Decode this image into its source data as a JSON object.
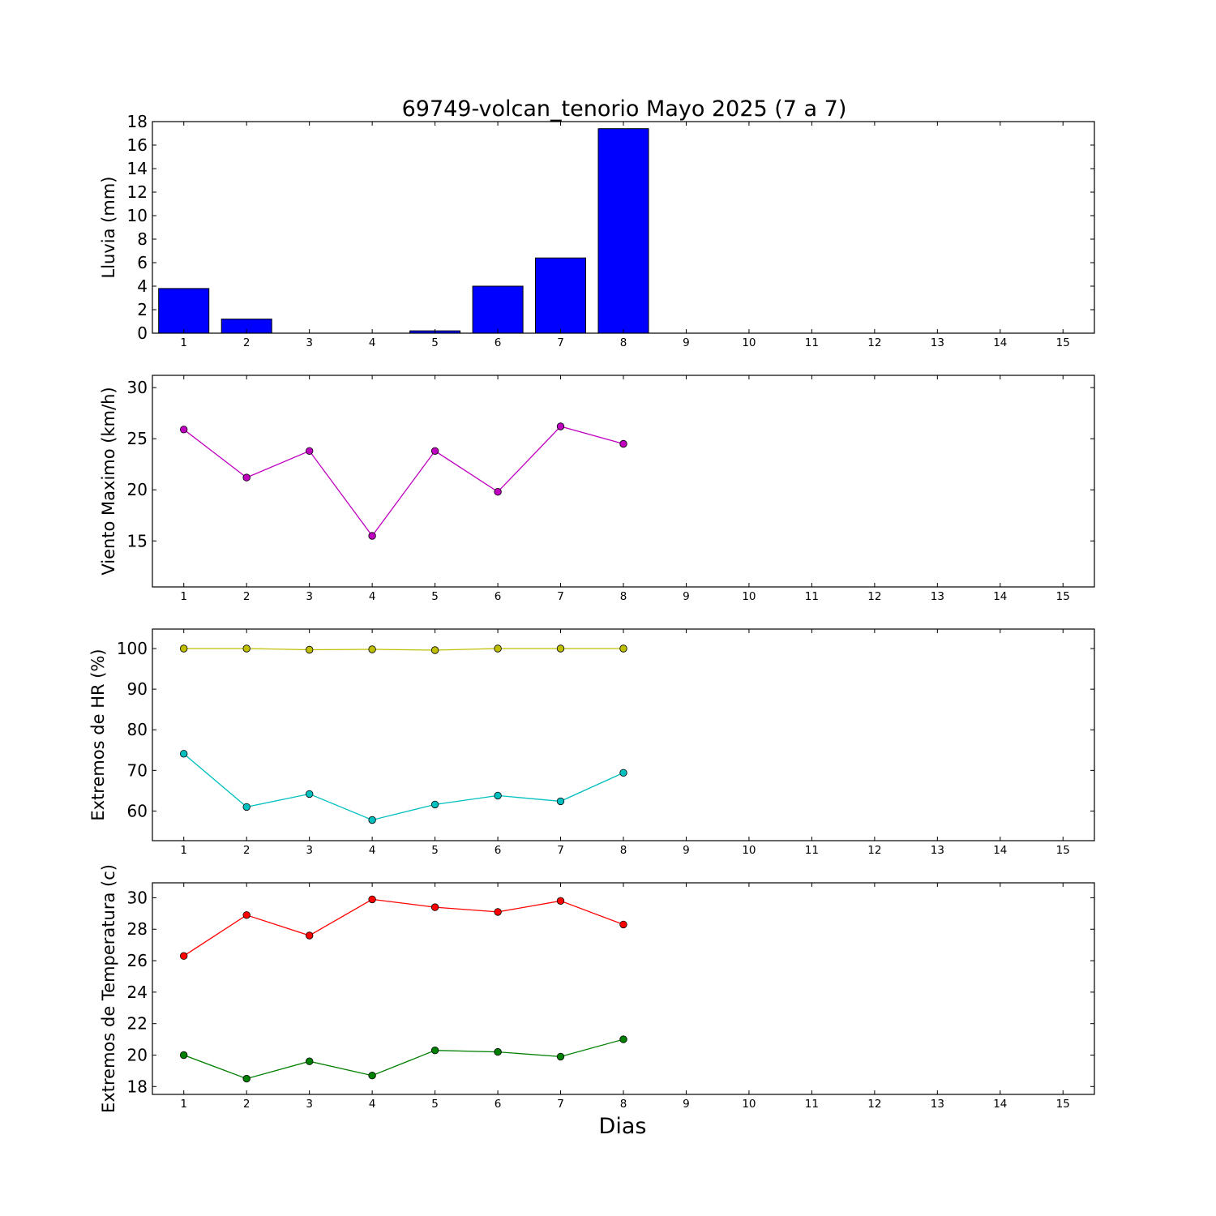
{
  "title": "69749-volcan_tenorio Mayo 2025  (7 a 7)",
  "xlabel": "Dias",
  "colors": {
    "rain": "#0000ff",
    "wind": "#bf00bf",
    "hr_max": "#bfbf00",
    "hr_min": "#00bfbf",
    "temp_max": "#ff0000",
    "temp_min": "#008000"
  },
  "chart_data": [
    {
      "type": "bar",
      "title": "69749-volcan_tenorio Mayo 2025  (7 a 7)",
      "ylabel": "Lluvia (mm)",
      "xlabel": "",
      "x_ticks": [
        1,
        2,
        3,
        4,
        5,
        6,
        7,
        8,
        9,
        10,
        11,
        12,
        13,
        14,
        15
      ],
      "xlim": [
        0.5,
        15.5
      ],
      "ylim": [
        0,
        18
      ],
      "y_ticks": [
        0,
        2,
        4,
        6,
        8,
        10,
        12,
        14,
        16,
        18
      ],
      "series": [
        {
          "x": [
            1,
            2,
            3,
            4,
            5,
            6,
            7,
            8
          ],
          "values": [
            3.8,
            1.2,
            0,
            0,
            0.2,
            4.0,
            6.4,
            17.4
          ],
          "color": "#0000ff"
        }
      ]
    },
    {
      "type": "line",
      "ylabel": "Viento Maximo (km/h)",
      "xlabel": "",
      "x_ticks": [
        1,
        2,
        3,
        4,
        5,
        6,
        7,
        8,
        9,
        10,
        11,
        12,
        13,
        14,
        15
      ],
      "xlim": [
        0.5,
        15.5
      ],
      "ylim": [
        10.5,
        31.2
      ],
      "y_ticks": [
        15,
        20,
        25,
        30
      ],
      "series": [
        {
          "x": [
            1,
            2,
            3,
            4,
            5,
            6,
            7,
            8
          ],
          "values": [
            25.9,
            21.2,
            23.8,
            15.5,
            23.8,
            19.8,
            26.2,
            24.5
          ],
          "color": "#bf00bf"
        }
      ]
    },
    {
      "type": "line",
      "ylabel": "Extremos de HR (%)",
      "xlabel": "",
      "x_ticks": [
        1,
        2,
        3,
        4,
        5,
        6,
        7,
        8,
        9,
        10,
        11,
        12,
        13,
        14,
        15
      ],
      "xlim": [
        0.5,
        15.5
      ],
      "ylim": [
        52.7,
        104.8
      ],
      "y_ticks": [
        60,
        70,
        80,
        90,
        100
      ],
      "series": [
        {
          "x": [
            1,
            2,
            3,
            4,
            5,
            6,
            7,
            8
          ],
          "values": [
            100,
            100,
            99.7,
            99.8,
            99.6,
            100,
            100,
            100
          ],
          "color": "#bfbf00"
        },
        {
          "x": [
            1,
            2,
            3,
            4,
            5,
            6,
            7,
            8
          ],
          "values": [
            74.1,
            61.0,
            64.2,
            57.8,
            61.6,
            63.8,
            62.4,
            69.4
          ],
          "color": "#00bfbf"
        }
      ]
    },
    {
      "type": "line",
      "ylabel": "Extremos de Temperatura (c)",
      "xlabel": "Dias",
      "x_ticks": [
        1,
        2,
        3,
        4,
        5,
        6,
        7,
        8,
        9,
        10,
        11,
        12,
        13,
        14,
        15
      ],
      "xlim": [
        0.5,
        15.5
      ],
      "ylim": [
        17.5,
        30.95
      ],
      "y_ticks": [
        18,
        20,
        22,
        24,
        26,
        28,
        30
      ],
      "series": [
        {
          "x": [
            1,
            2,
            3,
            4,
            5,
            6,
            7,
            8
          ],
          "values": [
            26.3,
            28.9,
            27.6,
            29.9,
            29.4,
            29.1,
            29.8,
            28.3
          ],
          "color": "#ff0000"
        },
        {
          "x": [
            1,
            2,
            3,
            4,
            5,
            6,
            7,
            8
          ],
          "values": [
            20.0,
            18.5,
            19.6,
            18.7,
            20.3,
            20.2,
            19.9,
            21.0
          ],
          "color": "#008000"
        }
      ]
    }
  ]
}
